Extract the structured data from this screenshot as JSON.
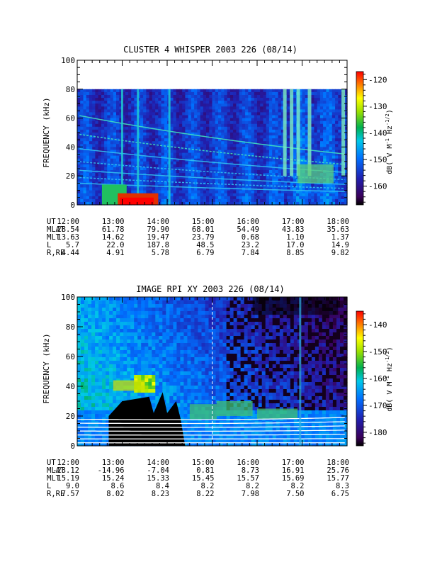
{
  "chart_data": [
    {
      "type": "heatmap",
      "title": "CLUSTER 4 WHISPER 2003 226 (08/14)",
      "ylabel": "FREQUENCY (kHz)",
      "xlim": [
        12,
        18
      ],
      "ylim": [
        0,
        100
      ],
      "data_top_khz": 80,
      "y_ticks": [
        "0",
        "20",
        "40",
        "60",
        "80",
        "100"
      ],
      "colorbar": {
        "label_base": "dB(  V M",
        "label_sup1": "-1",
        "label_mid": " Hz",
        "label_sup2": "-1/2",
        "label_end": ")",
        "min": -167,
        "max": -117,
        "ticks": [
          "-120",
          "-130",
          "-140",
          "-150",
          "-160"
        ],
        "tick_values": [
          -120,
          -130,
          -140,
          -150,
          -160
        ]
      },
      "ephemeris": [
        {
          "name": "UT",
          "values": [
            "12:00",
            "13:00",
            "14:00",
            "15:00",
            "16:00",
            "17:00",
            "18:00"
          ]
        },
        {
          "name": "MLAT",
          "values": [
            "28.54",
            "61.78",
            "79.90",
            "68.01",
            "54.49",
            "43.83",
            "35.63"
          ]
        },
        {
          "name": "MLT",
          "values": [
            "13.63",
            "14.62",
            "19.47",
            "23.79",
            "0.68",
            "1.10",
            "1.37"
          ]
        },
        {
          "name": "L",
          "values": [
            "5.7",
            "22.0",
            "187.8",
            "48.5",
            "23.2",
            "17.0",
            "14.9"
          ]
        },
        {
          "name": "R,RE",
          "values": [
            "4.44",
            "4.91",
            "5.78",
            "6.79",
            "7.84",
            "8.85",
            "9.82"
          ]
        }
      ]
    },
    {
      "type": "heatmap",
      "title": "IMAGE RPI XY 2003 226 (08/14)",
      "ylabel": "FREQUENCY (kHz)",
      "xlim": [
        12,
        18
      ],
      "ylim": [
        0,
        100
      ],
      "y_ticks": [
        "0",
        "20",
        "40",
        "60",
        "80",
        "100"
      ],
      "colorbar": {
        "label_base": "dB(  V M",
        "label_sup1": "-1",
        "label_mid": " Hz",
        "label_sup2": "-1/2",
        "label_end": ")",
        "min": -185,
        "max": -135,
        "ticks": [
          "-140",
          "-150",
          "-160",
          "-170",
          "-180"
        ],
        "tick_values": [
          -140,
          -150,
          -160,
          -170,
          -180
        ]
      },
      "ephemeris": [
        {
          "name": "UT",
          "values": [
            "12:00",
            "13:00",
            "14:00",
            "15:00",
            "16:00",
            "17:00",
            "18:00"
          ]
        },
        {
          "name": "MLAT",
          "values": [
            "-23.12",
            "-14.96",
            "-7.04",
            "0.81",
            "8.73",
            "16.91",
            "25.76"
          ]
        },
        {
          "name": "MLT",
          "values": [
            "15.19",
            "15.24",
            "15.33",
            "15.45",
            "15.57",
            "15.69",
            "15.77"
          ]
        },
        {
          "name": "L",
          "values": [
            "9.0",
            "8.6",
            "8.4",
            "8.2",
            "8.2",
            "8.2",
            "8.3"
          ]
        },
        {
          "name": "R,RE",
          "values": [
            "7.57",
            "8.02",
            "8.23",
            "8.22",
            "7.98",
            "7.50",
            "6.75"
          ]
        }
      ]
    }
  ]
}
